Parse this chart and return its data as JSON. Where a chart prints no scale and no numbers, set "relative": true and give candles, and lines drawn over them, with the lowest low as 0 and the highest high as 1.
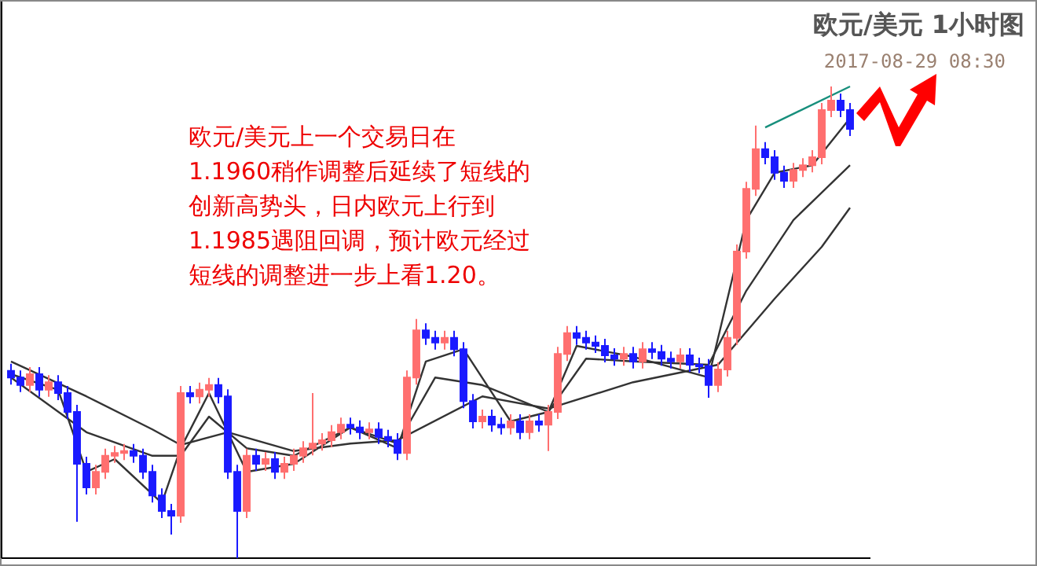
{
  "chart_data": {
    "type": "candlestick",
    "title": "欧元/美元 1小时图",
    "annotations": [
      "2017-08-29 08:30",
      "欧元/美元上一个交易日在",
      "1.1960稍作调整后延续了短线的",
      "创新高势头，日内欧元上行到",
      "1.1985遇阻回调，预计欧元经过",
      "短线的调整进一步上看1.20。"
    ],
    "relative": true,
    "categories": [
      null,
      null,
      null,
      null,
      null,
      null,
      null,
      null,
      null,
      null,
      null,
      null,
      null,
      null,
      null,
      null,
      null,
      null,
      null,
      null,
      null,
      null,
      null,
      null,
      null,
      null,
      null,
      null,
      null,
      null,
      null,
      null,
      null,
      null,
      null,
      null,
      null,
      null,
      null,
      null,
      null,
      null,
      null,
      null,
      null,
      null,
      null,
      null,
      null,
      null,
      null,
      null,
      null,
      null,
      null,
      null,
      null,
      null,
      null,
      null,
      null,
      null,
      null,
      null,
      null,
      null,
      null,
      null,
      null,
      null,
      null,
      null,
      null,
      null,
      null,
      null,
      null,
      null,
      null,
      null,
      null,
      null,
      null,
      null,
      null,
      null,
      null,
      null,
      null,
      null
    ],
    "ohlc": [
      [
        0.397,
        0.412,
        0.368,
        0.383
      ],
      [
        0.383,
        0.398,
        0.352,
        0.367
      ],
      [
        0.367,
        0.405,
        0.352,
        0.39
      ],
      [
        0.39,
        0.405,
        0.342,
        0.357
      ],
      [
        0.357,
        0.388,
        0.342,
        0.373
      ],
      [
        0.373,
        0.388,
        0.335,
        0.35
      ],
      [
        0.35,
        0.365,
        0.295,
        0.31
      ],
      [
        0.31,
        0.325,
        0.077,
        0.2
      ],
      [
        0.2,
        0.215,
        0.135,
        0.15
      ],
      [
        0.15,
        0.198,
        0.135,
        0.183
      ],
      [
        0.183,
        0.232,
        0.168,
        0.217
      ],
      [
        0.217,
        0.238,
        0.202,
        0.223
      ],
      [
        0.223,
        0.242,
        0.208,
        0.227
      ],
      [
        0.227,
        0.242,
        0.202,
        0.217
      ],
      [
        0.217,
        0.232,
        0.168,
        0.183
      ],
      [
        0.183,
        0.198,
        0.118,
        0.133
      ],
      [
        0.133,
        0.148,
        0.085,
        0.1
      ],
      [
        0.1,
        0.115,
        0.05,
        0.09
      ],
      [
        0.09,
        0.365,
        0.075,
        0.35
      ],
      [
        0.35,
        0.365,
        0.328,
        0.343
      ],
      [
        0.343,
        0.372,
        0.328,
        0.357
      ],
      [
        0.357,
        0.382,
        0.342,
        0.367
      ],
      [
        0.367,
        0.382,
        0.328,
        0.343
      ],
      [
        0.343,
        0.358,
        0.168,
        0.183
      ],
      [
        0.183,
        0.198,
        0,
        0.1
      ],
      [
        0.1,
        0.232,
        0.085,
        0.217
      ],
      [
        0.217,
        0.232,
        0.185,
        0.2
      ],
      [
        0.2,
        0.225,
        0.185,
        0.21
      ],
      [
        0.21,
        0.225,
        0.168,
        0.183
      ],
      [
        0.183,
        0.215,
        0.168,
        0.2
      ],
      [
        0.2,
        0.232,
        0.185,
        0.217
      ],
      [
        0.217,
        0.248,
        0.202,
        0.233
      ],
      [
        0.233,
        0.35,
        0.218,
        0.243
      ],
      [
        0.243,
        0.265,
        0.228,
        0.25
      ],
      [
        0.25,
        0.282,
        0.235,
        0.267
      ],
      [
        0.267,
        0.298,
        0.252,
        0.283
      ],
      [
        0.283,
        0.298,
        0.262,
        0.277
      ],
      [
        0.277,
        0.292,
        0.252,
        0.267
      ],
      [
        0.267,
        0.288,
        0.252,
        0.273
      ],
      [
        0.273,
        0.288,
        0.242,
        0.257
      ],
      [
        0.257,
        0.272,
        0.235,
        0.25
      ],
      [
        0.25,
        0.265,
        0.208,
        0.223
      ],
      [
        0.223,
        0.398,
        0.208,
        0.383
      ],
      [
        0.383,
        0.507,
        0.368,
        0.483
      ],
      [
        0.483,
        0.498,
        0.452,
        0.467
      ],
      [
        0.467,
        0.482,
        0.442,
        0.457
      ],
      [
        0.457,
        0.482,
        0.442,
        0.467
      ],
      [
        0.467,
        0.482,
        0.428,
        0.443
      ],
      [
        0.443,
        0.458,
        0.318,
        0.333
      ],
      [
        0.333,
        0.348,
        0.275,
        0.29
      ],
      [
        0.29,
        0.315,
        0.275,
        0.3
      ],
      [
        0.3,
        0.315,
        0.268,
        0.283
      ],
      [
        0.283,
        0.298,
        0.262,
        0.277
      ],
      [
        0.277,
        0.305,
        0.262,
        0.29
      ],
      [
        0.29,
        0.305,
        0.252,
        0.267
      ],
      [
        0.267,
        0.305,
        0.252,
        0.29
      ],
      [
        0.29,
        0.305,
        0.268,
        0.283
      ],
      [
        0.283,
        0.325,
        0.227,
        0.31
      ],
      [
        0.31,
        0.448,
        0.295,
        0.433
      ],
      [
        0.433,
        0.492,
        0.418,
        0.477
      ],
      [
        0.477,
        0.492,
        0.452,
        0.467
      ],
      [
        0.467,
        0.482,
        0.442,
        0.457
      ],
      [
        0.457,
        0.472,
        0.435,
        0.45
      ],
      [
        0.45,
        0.465,
        0.415,
        0.43
      ],
      [
        0.43,
        0.445,
        0.408,
        0.423
      ],
      [
        0.423,
        0.448,
        0.408,
        0.433
      ],
      [
        0.433,
        0.448,
        0.402,
        0.417
      ],
      [
        0.417,
        0.458,
        0.402,
        0.443
      ],
      [
        0.443,
        0.458,
        0.422,
        0.437
      ],
      [
        0.437,
        0.452,
        0.408,
        0.423
      ],
      [
        0.423,
        0.438,
        0.402,
        0.417
      ],
      [
        0.417,
        0.445,
        0.402,
        0.43
      ],
      [
        0.43,
        0.445,
        0.395,
        0.41
      ],
      [
        0.41,
        0.425,
        0.392,
        0.407
      ],
      [
        0.407,
        0.422,
        0.34,
        0.367
      ],
      [
        0.367,
        0.415,
        0.352,
        0.4
      ],
      [
        0.4,
        0.482,
        0.385,
        0.467
      ],
      [
        0.467,
        0.665,
        0.452,
        0.65
      ],
      [
        0.65,
        0.798,
        0.635,
        0.783
      ],
      [
        0.783,
        0.917,
        0.768,
        0.867
      ],
      [
        0.867,
        0.882,
        0.835,
        0.85
      ],
      [
        0.85,
        0.865,
        0.802,
        0.817
      ],
      [
        0.817,
        0.832,
        0.785,
        0.8
      ],
      [
        0.8,
        0.838,
        0.785,
        0.823
      ],
      [
        0.823,
        0.848,
        0.808,
        0.833
      ],
      [
        0.833,
        0.865,
        0.818,
        0.85
      ],
      [
        0.85,
        0.965,
        0.835,
        0.95
      ],
      [
        0.95,
        1,
        0.935,
        0.97
      ],
      [
        0.97,
        0.985,
        0.935,
        0.95
      ],
      [
        0.95,
        0.965,
        0.895,
        0.91
      ]
    ],
    "series": [
      {
        "type": "line",
        "color": "#333333",
        "values": [
          0.417,
          null,
          null,
          null,
          null,
          null,
          null,
          null,
          0.343,
          null,
          null,
          null,
          null,
          null,
          null,
          0.273,
          null,
          null,
          0.24,
          null,
          null,
          null,
          null,
          0.267,
          null,
          null,
          null,
          null,
          null,
          null,
          0.227,
          null,
          null,
          null,
          null,
          null,
          0.243,
          null,
          null,
          null,
          null,
          0.25,
          null,
          null,
          null,
          null,
          null,
          null,
          null,
          null,
          0.343,
          null,
          null,
          null,
          null,
          null,
          null,
          0.317,
          null,
          null,
          null,
          null,
          null,
          null,
          null,
          null,
          0.373,
          null,
          null,
          null,
          null,
          null,
          null,
          null,
          null,
          0.41,
          null,
          null,
          null,
          null,
          null,
          0.55,
          null,
          null,
          null,
          null,
          0.66,
          null,
          null,
          0.743
        ]
      },
      {
        "type": "line",
        "color": "#333333",
        "values": [
          0.383,
          null,
          null,
          null,
          null,
          null,
          null,
          null,
          0.267,
          null,
          null,
          null,
          null,
          null,
          null,
          0.217,
          null,
          null,
          0.217,
          null,
          null,
          0.3,
          null,
          null,
          null,
          0.233,
          null,
          null,
          null,
          null,
          0.217,
          null,
          null,
          null,
          null,
          null,
          0.277,
          null,
          null,
          null,
          null,
          0.243,
          null,
          null,
          null,
          0.383,
          null,
          null,
          null,
          null,
          0.367,
          null,
          null,
          null,
          null,
          null,
          null,
          0.31,
          null,
          null,
          null,
          0.423,
          null,
          null,
          null,
          null,
          0.417,
          null,
          null,
          null,
          null,
          null,
          null,
          null,
          0.41,
          null,
          null,
          null,
          0.567,
          null,
          null,
          null,
          null,
          0.717,
          null,
          null,
          null,
          null,
          null,
          0.833
        ]
      },
      {
        "type": "line",
        "color": "#333333",
        "values": [
          0.39,
          null,
          null,
          null,
          null,
          0.357,
          null,
          null,
          0.183,
          null,
          null,
          0.21,
          null,
          null,
          null,
          null,
          0.117,
          null,
          0.233,
          null,
          null,
          0.35,
          null,
          null,
          null,
          0.183,
          null,
          null,
          null,
          null,
          0.2,
          null,
          null,
          null,
          null,
          null,
          0.277,
          null,
          null,
          null,
          null,
          0.233,
          null,
          null,
          0.417,
          null,
          null,
          null,
          0.443,
          null,
          null,
          null,
          null,
          0.29,
          null,
          null,
          null,
          0.31,
          null,
          null,
          0.45,
          null,
          null,
          null,
          null,
          null,
          0.427,
          null,
          null,
          null,
          null,
          null,
          null,
          null,
          0.383,
          null,
          null,
          null,
          0.717,
          null,
          null,
          0.817,
          null,
          null,
          null,
          0.833,
          null,
          null,
          null,
          0.933
        ]
      },
      {
        "type": "line",
        "color": "#178f7c",
        "values": [
          null,
          null,
          null,
          null,
          null,
          null,
          null,
          null,
          null,
          null,
          null,
          null,
          null,
          null,
          null,
          null,
          null,
          null,
          null,
          null,
          null,
          null,
          null,
          null,
          null,
          null,
          null,
          null,
          null,
          null,
          null,
          null,
          null,
          null,
          null,
          null,
          null,
          null,
          null,
          null,
          null,
          null,
          null,
          null,
          null,
          null,
          null,
          null,
          null,
          null,
          null,
          null,
          null,
          null,
          null,
          null,
          null,
          null,
          null,
          null,
          null,
          null,
          null,
          null,
          null,
          null,
          null,
          null,
          null,
          null,
          null,
          null,
          null,
          null,
          null,
          null,
          null,
          null,
          null,
          null,
          0.913,
          null,
          null,
          null,
          null,
          null,
          null,
          null,
          null,
          1
        ]
      }
    ]
  }
}
